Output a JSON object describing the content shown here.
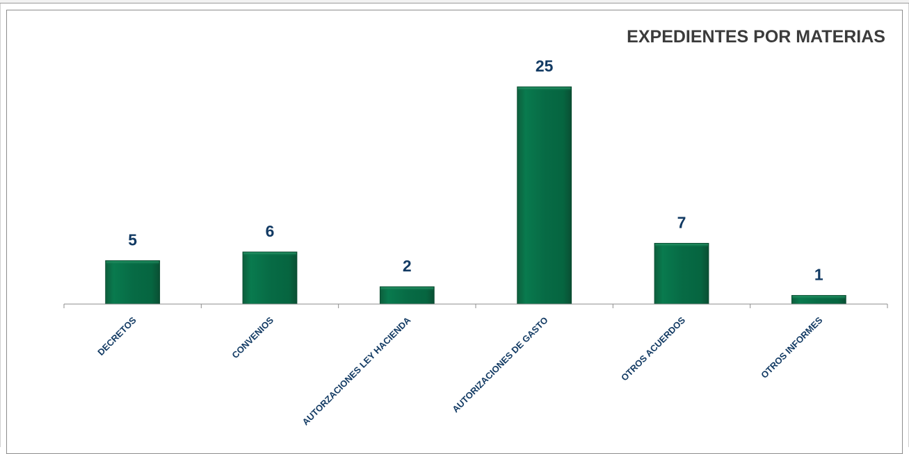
{
  "chart_data": {
    "type": "bar",
    "title": "EXPEDIENTES POR MATERIAS",
    "categories": [
      "DECRETOS",
      "CONVENIOS",
      "AUTORZACIONES LEY HACIENDA",
      "AUTORIZACIONES DE GASTO",
      "OTROS ACUERDOS",
      "OTROS INFORMES"
    ],
    "values": [
      5,
      6,
      2,
      25,
      7,
      1
    ],
    "xlabel": "",
    "ylabel": "",
    "ylim": [
      0,
      25
    ],
    "grid": false,
    "legend": "none",
    "bar_color": "#076b45",
    "label_color": "#123a63",
    "title_color": "#3b3b3b"
  }
}
